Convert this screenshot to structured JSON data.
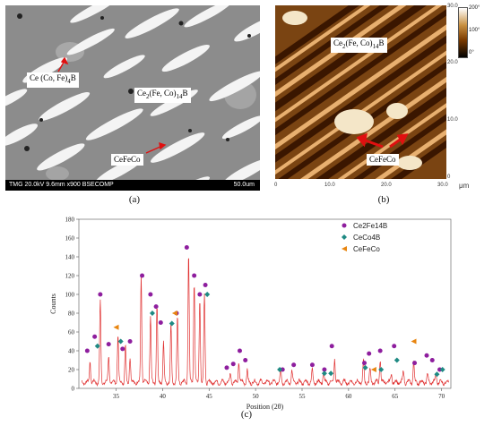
{
  "panel_a": {
    "labels": {
      "phase_boride": "Ce (Co, Fe)",
      "phase_boride_sub": "4",
      "phase_boride_tail": "B",
      "phase_main": "Ce",
      "phase_main_sub1": "2",
      "phase_main_mid": "(Fe, Co)",
      "phase_main_sub2": "14",
      "phase_main_tail": "B",
      "phase_cefeco": "CeFeCo"
    },
    "info_bar": "TMG 20.0kV 9.6mm x900 BSECOMP",
    "scale_bar": "50.0um",
    "caption": "(a)"
  },
  "panel_b": {
    "labels": {
      "phase_main": "Ce",
      "phase_main_sub1": "2",
      "phase_main_mid": "(Fe, Co)",
      "phase_main_sub2": "14",
      "phase_main_tail": "B",
      "phase_cefeco": "CeFeCo"
    },
    "x_ticks": [
      "0",
      "10.0",
      "20.0",
      "30.0"
    ],
    "y_ticks": [
      "30.0",
      "20.0",
      "10.0",
      "0"
    ],
    "unit": "μm",
    "colorbar": [
      "200°",
      "100°",
      "0°"
    ],
    "caption": "(b)"
  },
  "panel_c": {
    "caption": "(c)",
    "legend_markers": {
      "Ce2Fe14B": "#8e1e9e",
      "CeCo4B": "#1f8a83",
      "CeFeCo": "#e8850f"
    },
    "chart_data": {
      "type": "line",
      "xlabel": "Position (2θ)",
      "ylabel": "Counts",
      "xlim": [
        31,
        71
      ],
      "ylim": [
        0,
        180
      ],
      "x_ticks": [
        35,
        40,
        45,
        50,
        55,
        60,
        65,
        70
      ],
      "y_ticks": [
        0,
        20,
        40,
        60,
        80,
        100,
        120,
        140,
        160,
        180
      ],
      "pattern_color": "#e03030",
      "peaks": [
        {
          "x": 32.2,
          "h": 22
        },
        {
          "x": 33.3,
          "h": 85
        },
        {
          "x": 34.2,
          "h": 28
        },
        {
          "x": 35.2,
          "h": 50
        },
        {
          "x": 36.0,
          "h": 38
        },
        {
          "x": 36.5,
          "h": 28
        },
        {
          "x": 37.7,
          "h": 115
        },
        {
          "x": 38.7,
          "h": 70
        },
        {
          "x": 39.4,
          "h": 82
        },
        {
          "x": 40.1,
          "h": 42
        },
        {
          "x": 40.9,
          "h": 62
        },
        {
          "x": 41.6,
          "h": 70
        },
        {
          "x": 42.8,
          "h": 138
        },
        {
          "x": 43.4,
          "h": 108
        },
        {
          "x": 44.0,
          "h": 90
        },
        {
          "x": 44.5,
          "h": 95
        },
        {
          "x": 47.3,
          "h": 10
        },
        {
          "x": 48.2,
          "h": 22
        },
        {
          "x": 49.1,
          "h": 12
        },
        {
          "x": 52.7,
          "h": 14
        },
        {
          "x": 53.9,
          "h": 12
        },
        {
          "x": 56.1,
          "h": 14
        },
        {
          "x": 57.3,
          "h": 10
        },
        {
          "x": 58.5,
          "h": 26
        },
        {
          "x": 61.6,
          "h": 22
        },
        {
          "x": 62.3,
          "h": 14
        },
        {
          "x": 63.4,
          "h": 24
        },
        {
          "x": 64.6,
          "h": 10
        },
        {
          "x": 65.9,
          "h": 12
        },
        {
          "x": 67.0,
          "h": 22
        },
        {
          "x": 68.5,
          "h": 8
        },
        {
          "x": 69.4,
          "h": 10
        }
      ],
      "series": [
        {
          "name": "Ce2Fe14B",
          "marker": "circle",
          "points": [
            [
              31.9,
              40
            ],
            [
              32.7,
              55
            ],
            [
              33.3,
              100
            ],
            [
              34.2,
              47
            ],
            [
              35.7,
              42
            ],
            [
              36.5,
              50
            ],
            [
              37.8,
              120
            ],
            [
              38.7,
              100
            ],
            [
              39.3,
              87
            ],
            [
              39.8,
              70
            ],
            [
              41.5,
              80
            ],
            [
              42.6,
              150
            ],
            [
              43.4,
              120
            ],
            [
              44.0,
              100
            ],
            [
              44.6,
              110
            ],
            [
              46.9,
              22
            ],
            [
              47.6,
              26
            ],
            [
              48.3,
              40
            ],
            [
              48.9,
              30
            ],
            [
              52.9,
              20
            ],
            [
              54.1,
              25
            ],
            [
              56.1,
              25
            ],
            [
              57.4,
              20
            ],
            [
              58.2,
              45
            ],
            [
              61.7,
              27
            ],
            [
              62.2,
              37
            ],
            [
              63.4,
              40
            ],
            [
              64.9,
              45
            ],
            [
              67.1,
              27
            ],
            [
              68.4,
              35
            ],
            [
              69.0,
              30
            ],
            [
              69.8,
              20
            ]
          ]
        },
        {
          "name": "CeCo4B",
          "marker": "diamond",
          "points": [
            [
              33.0,
              45
            ],
            [
              35.5,
              50
            ],
            [
              38.9,
              80
            ],
            [
              41.0,
              69
            ],
            [
              44.8,
              100
            ],
            [
              52.6,
              20
            ],
            [
              57.4,
              16
            ],
            [
              58.1,
              16
            ],
            [
              61.8,
              22
            ],
            [
              63.5,
              20
            ],
            [
              65.2,
              30
            ],
            [
              69.5,
              15
            ],
            [
              70.1,
              20
            ]
          ]
        },
        {
          "name": "CeFeCo",
          "marker": "triangle",
          "points": [
            [
              35.0,
              65
            ],
            [
              41.3,
              80
            ],
            [
              62.7,
              20
            ],
            [
              67.0,
              50
            ]
          ]
        }
      ]
    }
  }
}
